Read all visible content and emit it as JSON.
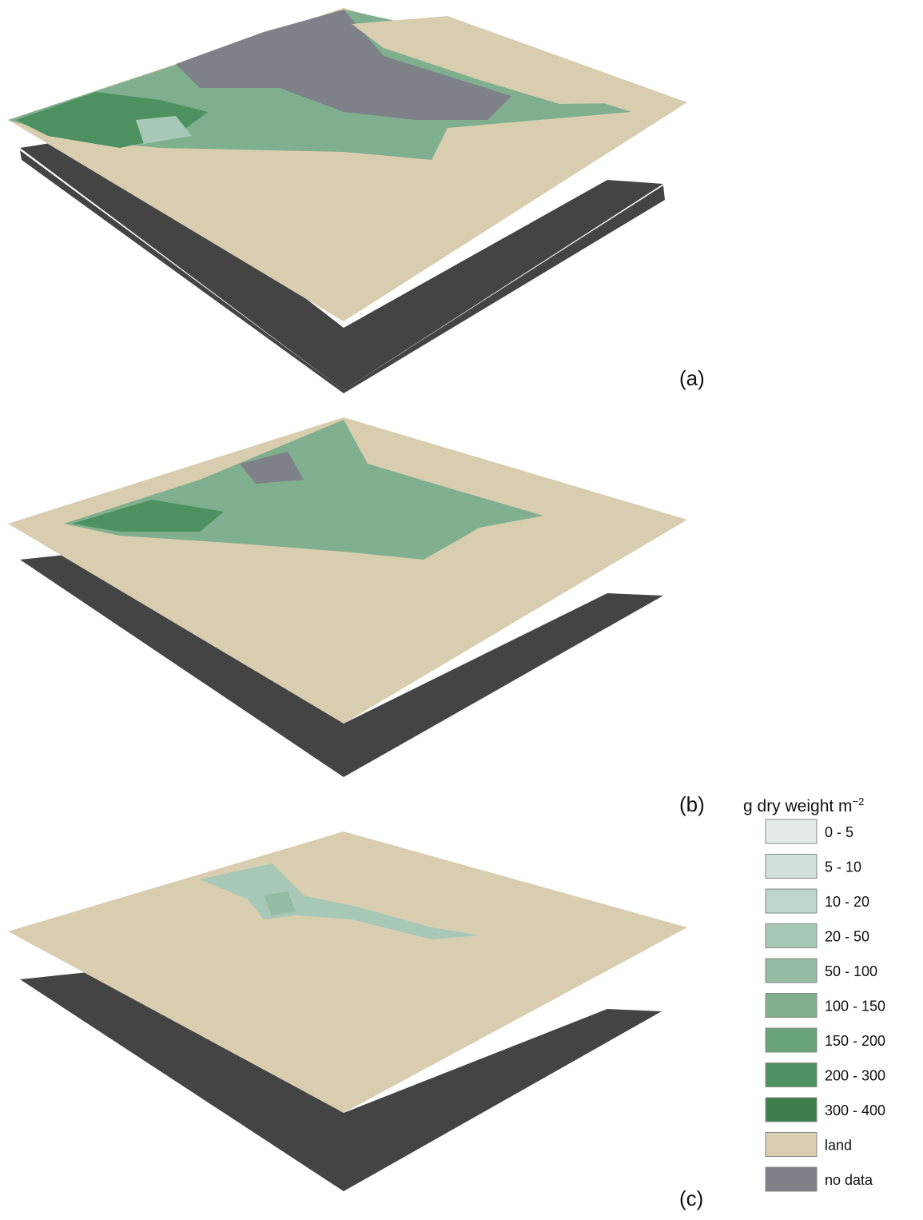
{
  "panels": [
    {
      "label": "(a)"
    },
    {
      "label": "(b)"
    },
    {
      "label": "(c)"
    }
  ],
  "legend": {
    "title": "g dry weight m",
    "title_superscript": "−2",
    "items": [
      {
        "label": "0 - 5",
        "color": "#e4ebe8"
      },
      {
        "label": "5 - 10",
        "color": "#d2e0da"
      },
      {
        "label": "10 - 20",
        "color": "#bdd5ca"
      },
      {
        "label": "20 - 50",
        "color": "#a7c8b6"
      },
      {
        "label": "50 - 100",
        "color": "#93bca2"
      },
      {
        "label": "100 - 150",
        "color": "#7faf8e"
      },
      {
        "label": "150 - 200",
        "color": "#69a479"
      },
      {
        "label": "200 - 300",
        "color": "#4e9160"
      },
      {
        "label": "300 - 400",
        "color": "#3d7e4c"
      },
      {
        "label": "land",
        "color": "#d9cdb0"
      },
      {
        "label": "no data",
        "color": "#7e8187"
      }
    ]
  }
}
